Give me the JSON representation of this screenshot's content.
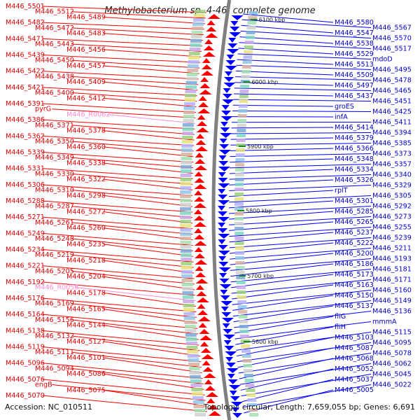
{
  "title": "Methylobacterium sp. 4-46, complete genome",
  "footer": {
    "accession_label": "Accession: NC_010511",
    "summary": "Topology: circular; Length: 7,659,055 bp; Genes: 6,691"
  },
  "ticks": [
    "6100 kbp",
    "6000 kbp",
    "5900 kbp",
    "5800 kbp",
    "5700 kbp",
    "5600 kbp"
  ],
  "left_labels": [
    "M446_5501",
    "M446_5512",
    "M446_5489",
    "M446_5482",
    "M446_5472",
    "M446_5483",
    "M446_5471",
    "M446_5443",
    "M446_5456",
    "M446_5439",
    "M446_5450",
    "M446_5457",
    "M446_5422",
    "M446_5438",
    "M446_5409",
    "M446_5421",
    "M446_5400",
    "M446_5412",
    "M446_5391",
    "pyrG",
    "M446_R0062",
    "M446_5386",
    "M446_5371",
    "M446_5378",
    "M446_5362",
    "M446_5350",
    "M446_5360",
    "M446_5339",
    "M446_5349",
    "M446_5338",
    "M446_5331",
    "M446_5330",
    "M446_5322",
    "M446_5306",
    "M446_5310",
    "M446_5298",
    "M446_5288",
    "M446_5287",
    "M446_5272",
    "M446_5271",
    "M446_5261",
    "M446_5260",
    "M446_5249",
    "M446_5248",
    "M446_5235",
    "M446_5234",
    "M446_5219",
    "M446_5218",
    "M446_5221",
    "M446_5205",
    "M446_5204",
    "M446_5192",
    "M446_R0056",
    "M446_5178",
    "M446_5176",
    "M446_5169",
    "M446_5165",
    "M446_5164",
    "M446_5156",
    "M446_5144",
    "M446_5138",
    "M446_5132",
    "M446_5127",
    "M446_5119",
    "M446_5111",
    "M446_5101",
    "M446_5096",
    "M446_5094",
    "M446_5086",
    "M446_5076",
    "engB",
    "M446_5075",
    "M446_5070"
  ],
  "right_labels": [
    "M446_5580",
    "M446_5567",
    "M446_5547",
    "M446_5570",
    "M446_5538",
    "M446_5517",
    "M446_5529",
    "mdoD",
    "M446_5513",
    "M446_5495",
    "M446_5509",
    "M446_5478",
    "M446_5497",
    "M446_5465",
    "M446_5437",
    "M446_5451",
    "groES",
    "M446_5425",
    "infA",
    "M446_5411",
    "M446_5414",
    "M446_5394",
    "M446_5379",
    "M446_5385",
    "M446_5366",
    "M446_5373",
    "M446_5348",
    "M446_5357",
    "M446_5334",
    "M446_5340",
    "M446_5326",
    "M446_5329",
    "rplT",
    "M446_5305",
    "M446_5301",
    "M446_5292",
    "M446_5285",
    "M446_5273",
    "M446_5265",
    "M446_5255",
    "M446_5237",
    "M446_5239",
    "M446_5222",
    "M446_5211",
    "M446_5200",
    "M446_5193",
    "M446_5186",
    "M446_5181",
    "M446_5173",
    "M446_5171",
    "M446_5163",
    "M446_5160",
    "M446_5150",
    "M446_5149",
    "M446_5137",
    "M446_5136",
    "fliG",
    "mmmA",
    "fliH",
    "M446_5115",
    "M446_5103",
    "M446_5095",
    "M446_5087",
    "M446_5078",
    "M446_5068",
    "M446_5062",
    "M446_5052",
    "M446_5045",
    "M446_5037",
    "M446_5022",
    "M446_5005"
  ],
  "colors": {
    "forward": "#ff0000",
    "reverse": "#0000ff",
    "rna": "#ff8ad0",
    "backbone": "#808080",
    "tick": "#1a8a1a"
  }
}
